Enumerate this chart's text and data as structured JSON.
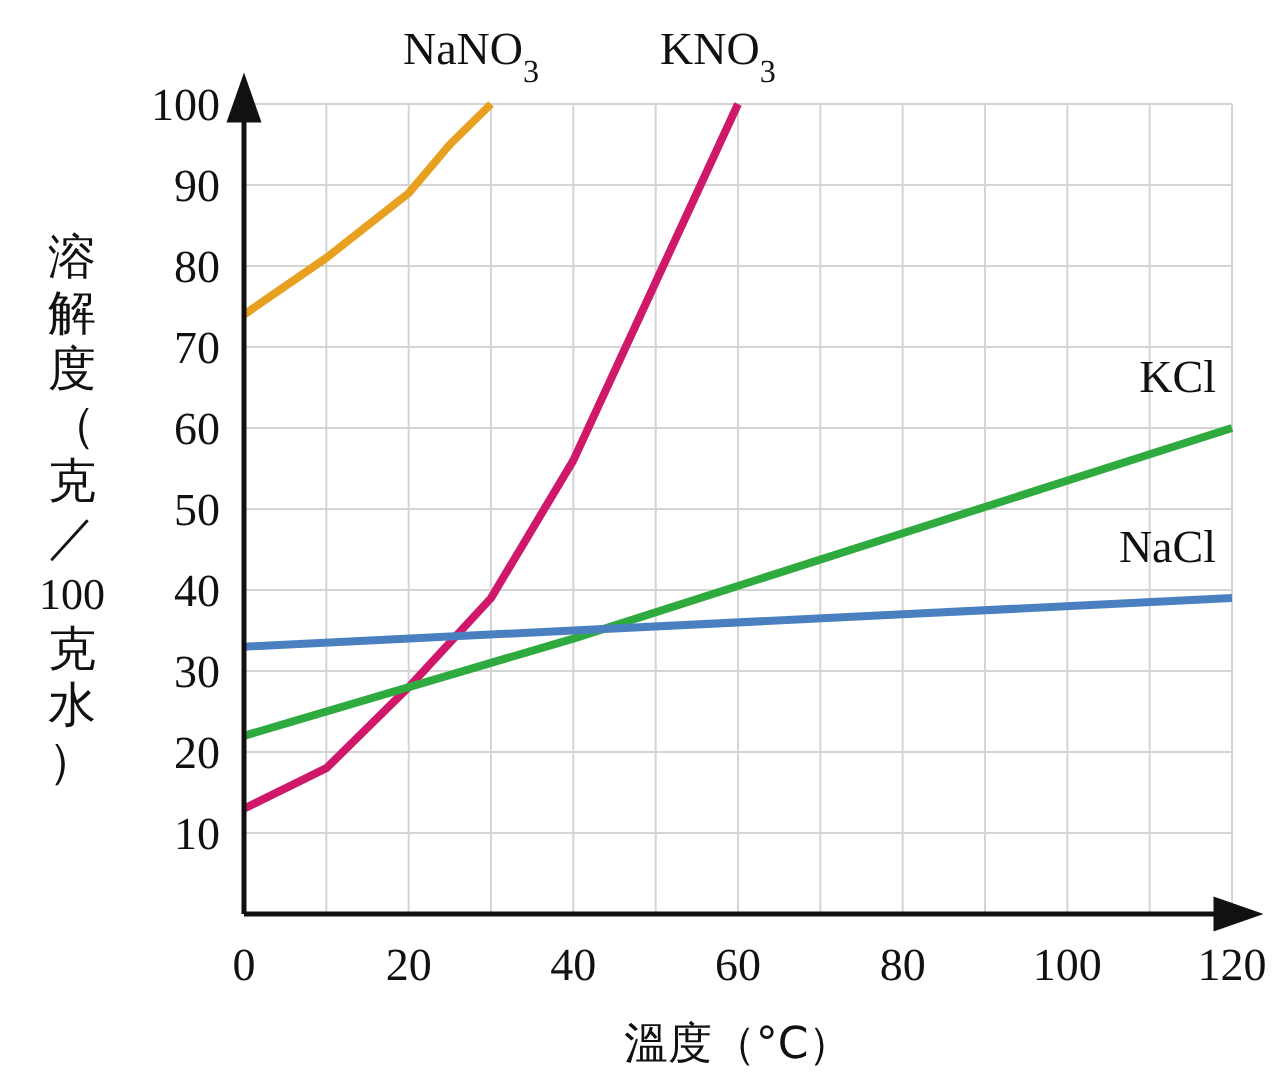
{
  "chart_data": {
    "type": "line",
    "xlabel": "溫度（°C）",
    "ylabel": "溶解度（克／100克水）",
    "xlim": [
      0,
      120
    ],
    "ylim": [
      0,
      100
    ],
    "xticks": [
      0,
      {
        "value": 10,
        "label": null
      },
      20,
      {
        "value": 30,
        "label": null
      },
      40,
      {
        "value": 50,
        "label": null
      },
      60,
      {
        "value": 70,
        "label": null
      },
      80,
      {
        "value": 90,
        "label": null
      },
      100,
      {
        "value": 110,
        "label": null
      },
      120
    ],
    "yticks": [
      10,
      20,
      30,
      40,
      50,
      60,
      70,
      80,
      90,
      100
    ],
    "grid": true,
    "series": [
      {
        "name": "NaNO$_{3}$",
        "color": "#e8a020",
        "x": [
          0,
          10,
          20,
          25,
          30
        ],
        "values": [
          74,
          81,
          89,
          95,
          100
        ]
      },
      {
        "name": "KNO$_{3}$",
        "color": "#d0186a",
        "x": [
          0,
          10,
          20,
          30,
          40,
          50,
          60
        ],
        "values": [
          13,
          18,
          28,
          39,
          56,
          78,
          100
        ]
      },
      {
        "name": "KCl",
        "color": "#2eaa3e",
        "x": [
          0,
          40,
          80,
          120
        ],
        "values": [
          22,
          34,
          47,
          60
        ]
      },
      {
        "name": "NaCl",
        "color": "#4a80c0",
        "x": [
          0,
          40,
          80,
          120
        ],
        "values": [
          33,
          35,
          37,
          39
        ]
      }
    ]
  }
}
